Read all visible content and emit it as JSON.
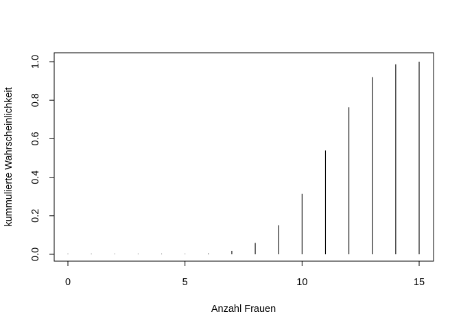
{
  "chart_data": {
    "type": "bar",
    "style": "histogram-spikes",
    "title": "",
    "xlabel": "Anzahl Frauen",
    "ylabel": "kummulierte Wahrscheinlichkeit",
    "xlim": [
      0,
      15
    ],
    "ylim": [
      0,
      1
    ],
    "x_ticks": [
      0,
      5,
      10,
      15
    ],
    "y_ticks": [
      0.0,
      0.2,
      0.4,
      0.6,
      0.8,
      1.0
    ],
    "y_tick_labels": [
      "0.0",
      "0.2",
      "0.4",
      "0.6",
      "0.8",
      "1.0"
    ],
    "grid": false,
    "legend": "none",
    "line_color": "#000000",
    "x": [
      0,
      1,
      2,
      3,
      4,
      5,
      6,
      7,
      8,
      9,
      10,
      11,
      12,
      13,
      14,
      15
    ],
    "y": [
      0.0,
      0.0,
      0.0,
      0.0,
      0.0,
      0.0005,
      0.004,
      0.018,
      0.059,
      0.151,
      0.314,
      0.539,
      0.764,
      0.92,
      0.986,
      1.0
    ]
  }
}
